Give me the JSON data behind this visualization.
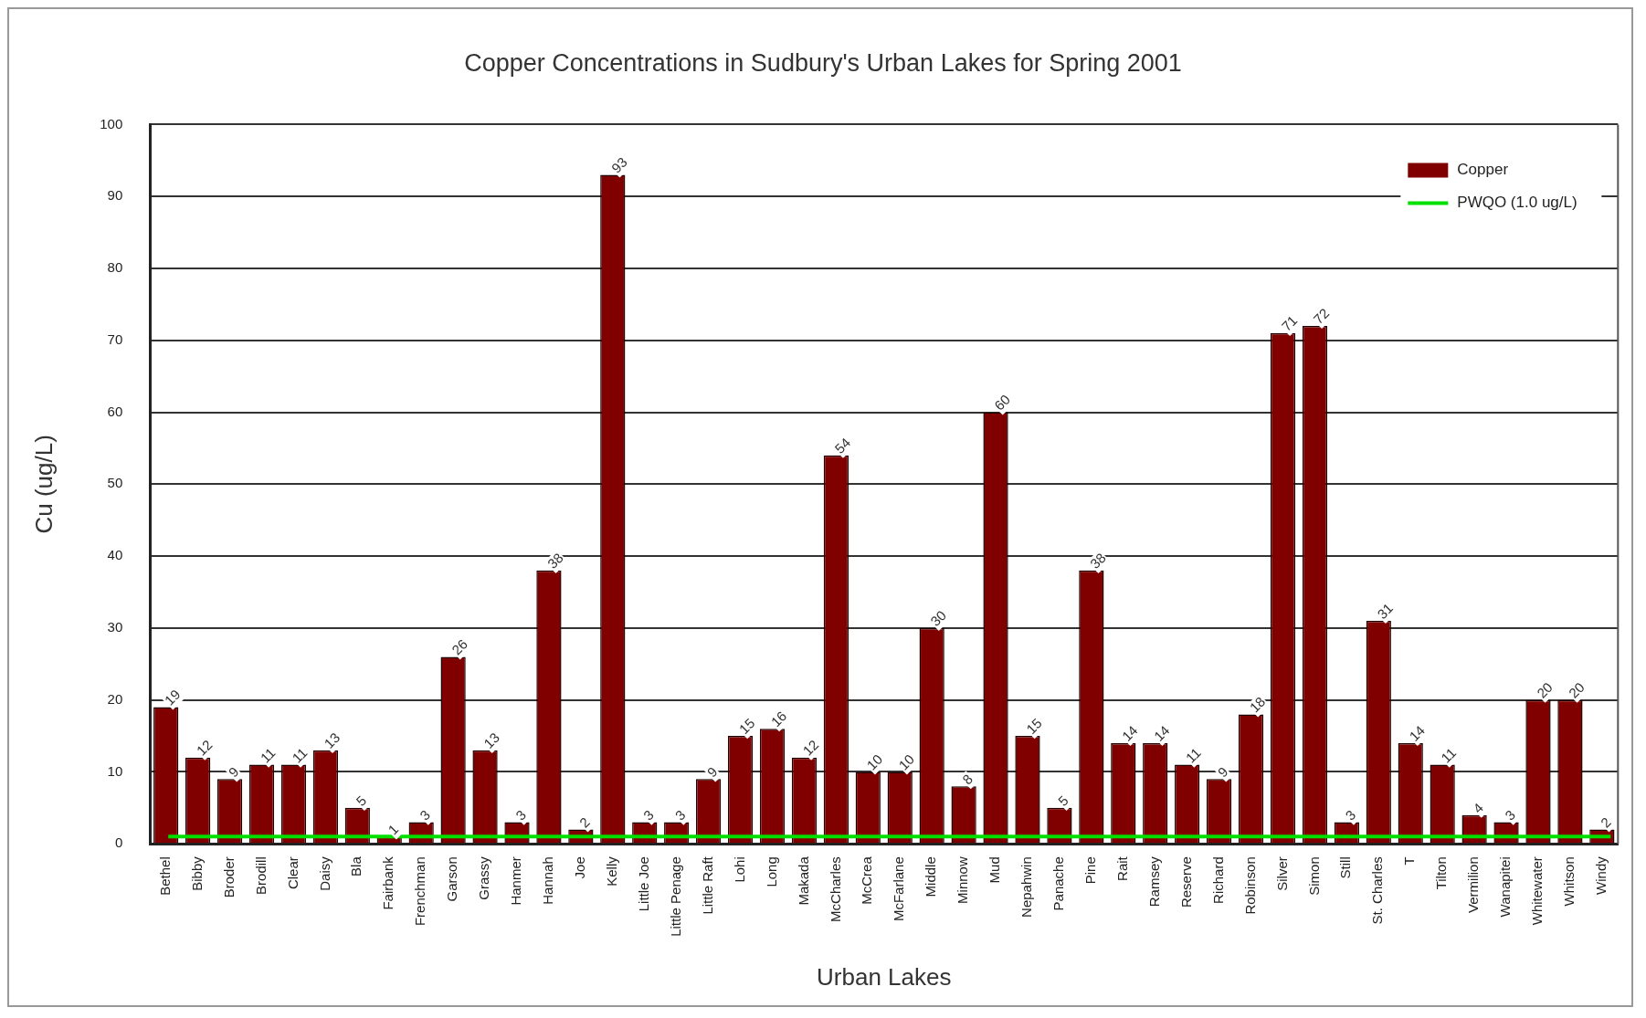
{
  "chart_data": {
    "type": "bar",
    "title": "Copper Concentrations in Sudbury's Urban Lakes for Spring 2001",
    "xlabel": "Urban Lakes",
    "ylabel": "Cu (ug/L)",
    "categories": [
      "Bethel",
      "Bibby",
      "Broder",
      "Brodill",
      "Clear",
      "Daisy",
      "Bla",
      "Fairbank",
      "Frenchman",
      "Garson",
      "Grassy",
      "Hanmer",
      "Hannah",
      "Joe",
      "Kelly",
      "Little Joe",
      "Little Penage",
      "Little Raft",
      "Lohi",
      "Long",
      "Makada",
      "McCharles",
      "McCrea",
      "McFarlane",
      "Middle",
      "Minnow",
      "Mud",
      "Nepahwin",
      "Panache",
      "Pine",
      "Rait",
      "Ramsey",
      "Reserve",
      "Richard",
      "Robinson",
      "Silver",
      "Simon",
      "Still",
      "St. Charles",
      "T",
      "Tilton",
      "Vermilion",
      "Wanapitei",
      "Whitewater",
      "Whitson",
      "Windy"
    ],
    "series": [
      {
        "name": "Copper",
        "color": "#800000",
        "values": [
          19,
          12,
          9,
          11,
          11,
          13,
          5,
          1,
          3,
          26,
          13,
          3,
          38,
          2,
          93,
          3,
          3,
          9,
          15,
          16,
          12,
          54,
          10,
          10,
          30,
          8,
          60,
          15,
          5,
          38,
          14,
          14,
          11,
          9,
          18,
          71,
          72,
          3,
          31,
          14,
          11,
          4,
          3,
          20,
          20,
          2
        ]
      }
    ],
    "ref_lines": [
      {
        "axis": "y",
        "value": 1,
        "label": "PWQO (1.0 ug/L)",
        "color": "#00e000"
      }
    ],
    "ylim": [
      0,
      100
    ],
    "yticks": [
      0,
      10,
      20,
      30,
      40,
      50,
      60,
      70,
      80,
      90,
      100
    ],
    "grid": "y",
    "legend": "top right",
    "data_labels": true
  }
}
